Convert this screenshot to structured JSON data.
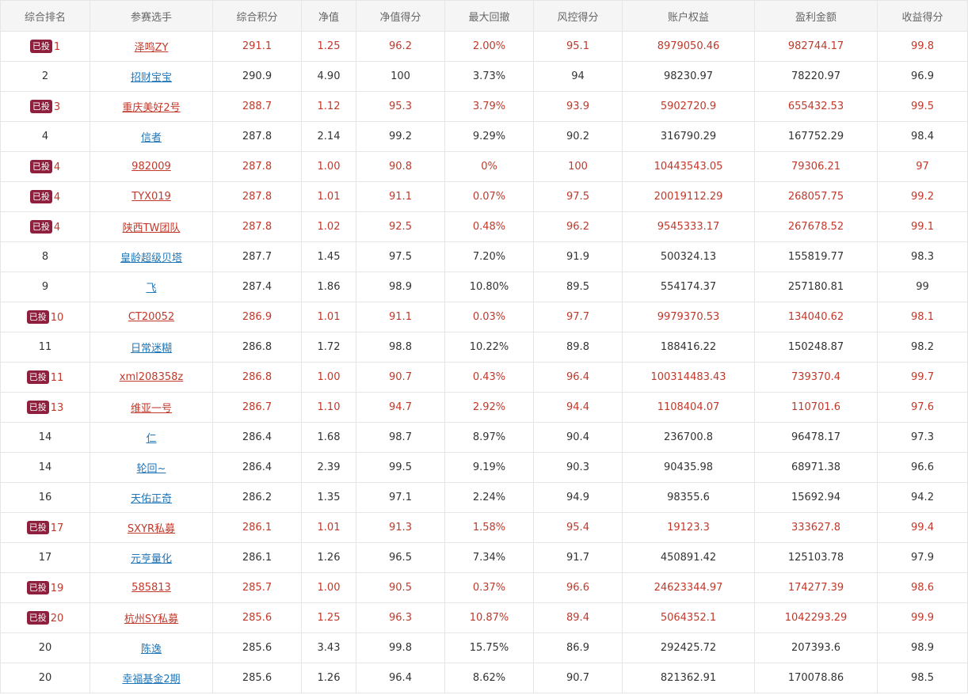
{
  "headers": [
    "综合排名",
    "参赛选手",
    "综合积分",
    "净值",
    "净值得分",
    "最大回撤",
    "风控得分",
    "账户权益",
    "盈利金额",
    "收益得分"
  ],
  "badge_text": "已投",
  "colors": {
    "invested_text": "#c0392b",
    "badge_bg": "#8e1f3d",
    "link": "#2177b8"
  },
  "rows": [
    {
      "invested": true,
      "rank": "1",
      "name": "泽鸣ZY",
      "score": "291.1",
      "nav": "1.25",
      "nav_score": "96.2",
      "max_dd": "2.00%",
      "risk_score": "95.1",
      "equity": "8979050.46",
      "profit": "982744.17",
      "return_score": "99.8"
    },
    {
      "invested": false,
      "rank": "2",
      "name": "招财宝宝",
      "score": "290.9",
      "nav": "4.90",
      "nav_score": "100",
      "max_dd": "3.73%",
      "risk_score": "94",
      "equity": "98230.97",
      "profit": "78220.97",
      "return_score": "96.9"
    },
    {
      "invested": true,
      "rank": "3",
      "name": "重庆美好2号",
      "score": "288.7",
      "nav": "1.12",
      "nav_score": "95.3",
      "max_dd": "3.79%",
      "risk_score": "93.9",
      "equity": "5902720.9",
      "profit": "655432.53",
      "return_score": "99.5"
    },
    {
      "invested": false,
      "rank": "4",
      "name": "信者",
      "score": "287.8",
      "nav": "2.14",
      "nav_score": "99.2",
      "max_dd": "9.29%",
      "risk_score": "90.2",
      "equity": "316790.29",
      "profit": "167752.29",
      "return_score": "98.4"
    },
    {
      "invested": true,
      "rank": "4",
      "name": "982009",
      "score": "287.8",
      "nav": "1.00",
      "nav_score": "90.8",
      "max_dd": "0%",
      "risk_score": "100",
      "equity": "10443543.05",
      "profit": "79306.21",
      "return_score": "97"
    },
    {
      "invested": true,
      "rank": "4",
      "name": "TYX019",
      "score": "287.8",
      "nav": "1.01",
      "nav_score": "91.1",
      "max_dd": "0.07%",
      "risk_score": "97.5",
      "equity": "20019112.29",
      "profit": "268057.75",
      "return_score": "99.2"
    },
    {
      "invested": true,
      "rank": "4",
      "name": "陕西TW团队",
      "score": "287.8",
      "nav": "1.02",
      "nav_score": "92.5",
      "max_dd": "0.48%",
      "risk_score": "96.2",
      "equity": "9545333.17",
      "profit": "267678.52",
      "return_score": "99.1"
    },
    {
      "invested": false,
      "rank": "8",
      "name": "皇龄超级贝塔",
      "score": "287.7",
      "nav": "1.45",
      "nav_score": "97.5",
      "max_dd": "7.20%",
      "risk_score": "91.9",
      "equity": "500324.13",
      "profit": "155819.77",
      "return_score": "98.3"
    },
    {
      "invested": false,
      "rank": "9",
      "name": "飞",
      "score": "287.4",
      "nav": "1.86",
      "nav_score": "98.9",
      "max_dd": "10.80%",
      "risk_score": "89.5",
      "equity": "554174.37",
      "profit": "257180.81",
      "return_score": "99"
    },
    {
      "invested": true,
      "rank": "10",
      "name": "CT20052",
      "score": "286.9",
      "nav": "1.01",
      "nav_score": "91.1",
      "max_dd": "0.03%",
      "risk_score": "97.7",
      "equity": "9979370.53",
      "profit": "134040.62",
      "return_score": "98.1"
    },
    {
      "invested": false,
      "rank": "11",
      "name": "日常迷糊",
      "score": "286.8",
      "nav": "1.72",
      "nav_score": "98.8",
      "max_dd": "10.22%",
      "risk_score": "89.8",
      "equity": "188416.22",
      "profit": "150248.87",
      "return_score": "98.2"
    },
    {
      "invested": true,
      "rank": "11",
      "name": "xml208358z",
      "score": "286.8",
      "nav": "1.00",
      "nav_score": "90.7",
      "max_dd": "0.43%",
      "risk_score": "96.4",
      "equity": "100314483.43",
      "profit": "739370.4",
      "return_score": "99.7"
    },
    {
      "invested": true,
      "rank": "13",
      "name": "维亚一号",
      "score": "286.7",
      "nav": "1.10",
      "nav_score": "94.7",
      "max_dd": "2.92%",
      "risk_score": "94.4",
      "equity": "1108404.07",
      "profit": "110701.6",
      "return_score": "97.6"
    },
    {
      "invested": false,
      "rank": "14",
      "name": "仁",
      "score": "286.4",
      "nav": "1.68",
      "nav_score": "98.7",
      "max_dd": "8.97%",
      "risk_score": "90.4",
      "equity": "236700.8",
      "profit": "96478.17",
      "return_score": "97.3"
    },
    {
      "invested": false,
      "rank": "14",
      "name": "轮回~",
      "score": "286.4",
      "nav": "2.39",
      "nav_score": "99.5",
      "max_dd": "9.19%",
      "risk_score": "90.3",
      "equity": "90435.98",
      "profit": "68971.38",
      "return_score": "96.6"
    },
    {
      "invested": false,
      "rank": "16",
      "name": "天佑正奇",
      "score": "286.2",
      "nav": "1.35",
      "nav_score": "97.1",
      "max_dd": "2.24%",
      "risk_score": "94.9",
      "equity": "98355.6",
      "profit": "15692.94",
      "return_score": "94.2"
    },
    {
      "invested": true,
      "rank": "17",
      "name": "SXYR私募",
      "score": "286.1",
      "nav": "1.01",
      "nav_score": "91.3",
      "max_dd": "1.58%",
      "risk_score": "95.4",
      "equity": "19123.3",
      "profit": "333627.8",
      "return_score": "99.4"
    },
    {
      "invested": false,
      "rank": "17",
      "name": "元亨量化",
      "score": "286.1",
      "nav": "1.26",
      "nav_score": "96.5",
      "max_dd": "7.34%",
      "risk_score": "91.7",
      "equity": "450891.42",
      "profit": "125103.78",
      "return_score": "97.9"
    },
    {
      "invested": true,
      "rank": "19",
      "name": "585813",
      "score": "285.7",
      "nav": "1.00",
      "nav_score": "90.5",
      "max_dd": "0.37%",
      "risk_score": "96.6",
      "equity": "24623344.97",
      "profit": "174277.39",
      "return_score": "98.6"
    },
    {
      "invested": true,
      "rank": "20",
      "name": "杭州SY私募",
      "score": "285.6",
      "nav": "1.25",
      "nav_score": "96.3",
      "max_dd": "10.87%",
      "risk_score": "89.4",
      "equity": "5064352.1",
      "profit": "1042293.29",
      "return_score": "99.9"
    },
    {
      "invested": false,
      "rank": "20",
      "name": "陈逸",
      "score": "285.6",
      "nav": "3.43",
      "nav_score": "99.8",
      "max_dd": "15.75%",
      "risk_score": "86.9",
      "equity": "292425.72",
      "profit": "207393.6",
      "return_score": "98.9"
    },
    {
      "invested": false,
      "rank": "20",
      "name": "幸福基金2期",
      "score": "285.6",
      "nav": "1.26",
      "nav_score": "96.4",
      "max_dd": "8.62%",
      "risk_score": "90.7",
      "equity": "821362.91",
      "profit": "170078.86",
      "return_score": "98.5"
    }
  ]
}
